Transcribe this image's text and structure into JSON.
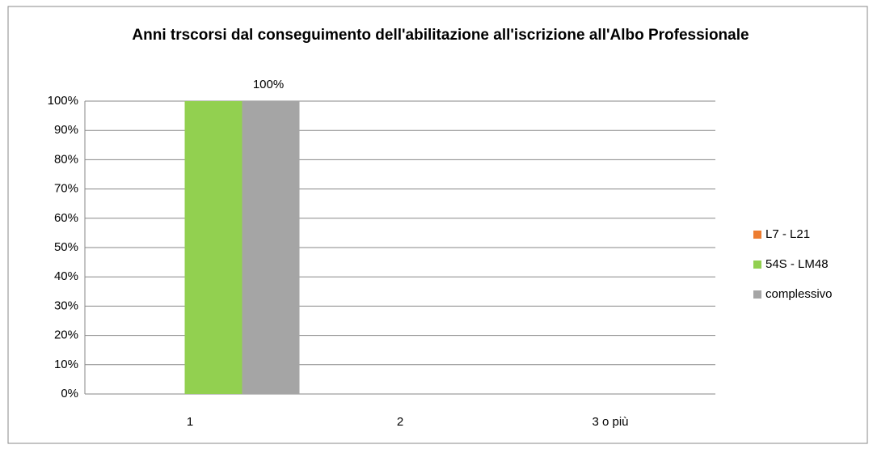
{
  "chart_data": {
    "type": "bar",
    "title": "Anni trscorsi dal conseguimento dell'abilitazione all'iscrizione all'Albo Professionale",
    "categories": [
      "1",
      "2",
      "3 o più"
    ],
    "series": [
      {
        "name": "L7 - L21",
        "color": "#ed7d31",
        "values": [
          0,
          0,
          0
        ]
      },
      {
        "name": "54S - LM48",
        "color": "#92d050",
        "values": [
          100,
          0,
          0
        ]
      },
      {
        "name": "complessivo",
        "color": "#a5a5a5",
        "values": [
          100,
          0,
          0
        ],
        "value_labels": [
          "100%",
          null,
          null
        ]
      }
    ],
    "ylim": [
      0,
      100
    ],
    "yticks": [
      {
        "value": 0,
        "label": "0%"
      },
      {
        "value": 10,
        "label": "10%"
      },
      {
        "value": 20,
        "label": "20%"
      },
      {
        "value": 30,
        "label": "30%"
      },
      {
        "value": 40,
        "label": "40%"
      },
      {
        "value": 50,
        "label": "50%"
      },
      {
        "value": 60,
        "label": "60%"
      },
      {
        "value": 70,
        "label": "70%"
      },
      {
        "value": 80,
        "label": "80%"
      },
      {
        "value": 90,
        "label": "90%"
      },
      {
        "value": 100,
        "label": "100%"
      }
    ],
    "grid": true,
    "legend": "right"
  }
}
